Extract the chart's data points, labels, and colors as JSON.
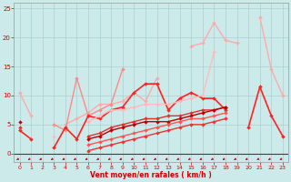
{
  "title": "",
  "xlabel": "Vent moyen/en rafales ( km/h )",
  "xlim": [
    -0.5,
    23.5
  ],
  "ylim": [
    -1.5,
    26
  ],
  "yticks": [
    0,
    5,
    10,
    15,
    20,
    25
  ],
  "xticks": [
    0,
    1,
    2,
    3,
    4,
    5,
    6,
    7,
    8,
    9,
    10,
    11,
    12,
    13,
    14,
    15,
    16,
    17,
    18,
    19,
    20,
    21,
    22,
    23
  ],
  "bg_color": "#cdeaea",
  "grid_color": "#aacfcf",
  "series": [
    {
      "y": [
        10.5,
        6.5,
        null,
        null,
        5.0,
        6.0,
        7.0,
        8.5,
        8.5,
        9.0,
        10.5,
        9.0,
        13.0,
        null,
        null,
        18.5,
        19.0,
        22.5,
        19.5,
        19.0,
        null,
        23.5,
        14.5,
        10.0
      ],
      "color": "#ffaaaa",
      "lw": 1.0,
      "ms": 2.0
    },
    {
      "y": [
        null,
        null,
        null,
        5.0,
        4.0,
        13.0,
        6.5,
        7.5,
        8.5,
        14.5,
        null,
        null,
        null,
        null,
        null,
        null,
        null,
        null,
        null,
        null,
        null,
        null,
        null,
        null
      ],
      "color": "#ff8888",
      "lw": 1.0,
      "ms": 2.0
    },
    {
      "y": [
        4.0,
        2.5,
        null,
        1.0,
        4.5,
        2.5,
        6.5,
        6.0,
        7.5,
        8.0,
        10.5,
        12.0,
        12.0,
        7.5,
        9.5,
        10.5,
        9.5,
        9.5,
        7.5,
        null,
        4.5,
        11.5,
        6.5,
        3.0
      ],
      "color": "#ff2222",
      "lw": 1.2,
      "ms": 2.0
    },
    {
      "y": [
        4.5,
        null,
        null,
        3.0,
        null,
        null,
        5.5,
        6.5,
        7.5,
        7.5,
        8.0,
        8.5,
        8.5,
        8.5,
        9.0,
        9.5,
        10.0,
        17.5,
        null,
        null,
        null,
        null,
        null,
        null
      ],
      "color": "#ffbbbb",
      "lw": 1.0,
      "ms": 2.0
    },
    {
      "y": [
        4.5,
        null,
        null,
        null,
        null,
        null,
        3.0,
        3.5,
        4.5,
        5.0,
        5.5,
        6.0,
        6.0,
        6.5,
        6.5,
        7.0,
        7.5,
        7.5,
        8.0,
        null,
        null,
        null,
        null,
        null
      ],
      "color": "#dd3333",
      "lw": 1.0,
      "ms": 2.0
    },
    {
      "y": [
        5.5,
        null,
        null,
        null,
        null,
        null,
        2.5,
        3.0,
        4.0,
        4.5,
        5.0,
        5.5,
        5.5,
        5.5,
        6.0,
        6.5,
        7.0,
        7.5,
        8.0,
        null,
        null,
        null,
        null,
        null
      ],
      "color": "#bb0000",
      "lw": 1.0,
      "ms": 2.0
    },
    {
      "y": [
        null,
        null,
        null,
        null,
        null,
        null,
        1.5,
        2.0,
        2.5,
        3.0,
        3.5,
        4.0,
        4.5,
        5.0,
        5.5,
        6.0,
        6.0,
        6.5,
        7.0,
        null,
        null,
        null,
        null,
        null
      ],
      "color": "#ff5555",
      "lw": 1.0,
      "ms": 2.0
    },
    {
      "y": [
        null,
        null,
        null,
        null,
        null,
        null,
        0.5,
        1.0,
        1.5,
        2.0,
        2.5,
        3.0,
        3.5,
        4.0,
        4.5,
        5.0,
        5.0,
        5.5,
        6.0,
        null,
        null,
        null,
        null,
        null
      ],
      "color": "#ee3333",
      "lw": 1.0,
      "ms": 2.0
    }
  ]
}
